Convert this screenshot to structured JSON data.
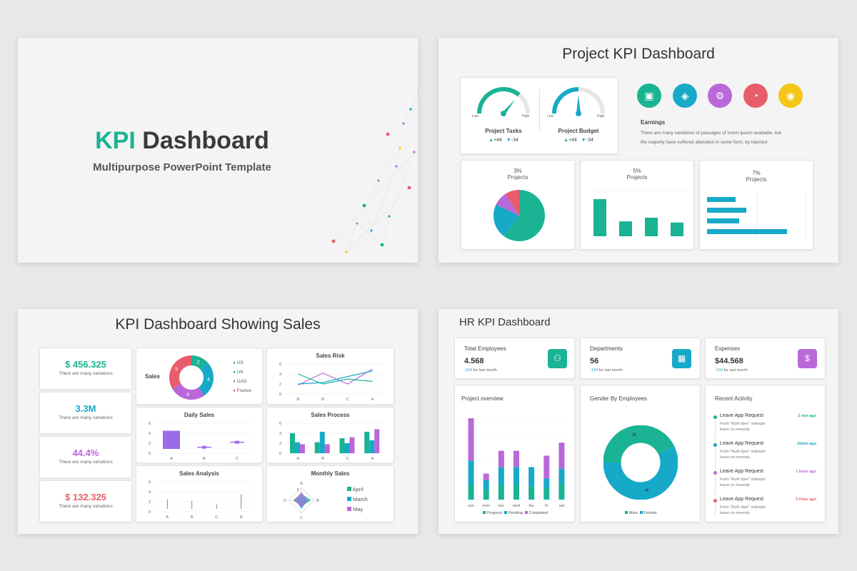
{
  "colors": {
    "teal": "#1ab394",
    "cyan": "#17a9c8",
    "purple": "#b968d8",
    "red": "#e85d6b",
    "yellow": "#f5c518",
    "violet": "#9b6ce8"
  },
  "cover": {
    "title_accent": "KPI",
    "title_rest": "Dashboard",
    "subtitle": "Multipurpose PowerPoint Template"
  },
  "project": {
    "title": "Project KPI Dashboard",
    "gauges": [
      {
        "label": "Project Tasks",
        "low": "Low",
        "high": "High",
        "up": "+44",
        "down": "-34",
        "level": 0.72
      },
      {
        "label": "Project Budget",
        "low": "Low",
        "high": "High",
        "up": "+44",
        "down": "-34",
        "level": 0.5
      }
    ],
    "icons": [
      {
        "name": "chart-icon",
        "color": "#1ab394"
      },
      {
        "name": "tag-icon",
        "color": "#17a9c8"
      },
      {
        "name": "gear-icon",
        "color": "#b968d8"
      },
      {
        "name": "pie-icon",
        "color": "#e85d6b"
      },
      {
        "name": "location-icon",
        "color": "#f5c518"
      }
    ],
    "earnings_title": "Earnings",
    "earnings_text_1": "There are many variations of passages of lorem ipsum available, but",
    "earnings_text_2": "the majority have suffered alteration in some form, by injected",
    "mini": [
      {
        "pct": "3%",
        "label": "Projects"
      },
      {
        "pct": "5%",
        "label": "Projects"
      },
      {
        "pct": "7%",
        "label": "Projects"
      }
    ],
    "pie_data": [
      {
        "value": 60,
        "color": "#1ab394"
      },
      {
        "value": 22,
        "color": "#17a9c8"
      },
      {
        "value": 9,
        "color": "#b968d8"
      },
      {
        "value": 9,
        "color": "#e85d6b"
      }
    ],
    "bar_data": [
      100,
      40,
      50,
      37
    ],
    "hbar_data": [
      40,
      55,
      45,
      112
    ]
  },
  "sales": {
    "title": "KPI Dashboard Showing Sales",
    "stats": [
      {
        "value": "$ 456.325",
        "text": "There are many variations",
        "color": "#1ab394"
      },
      {
        "value": "3.3M",
        "text": "There are many variations",
        "color": "#17a9c8"
      },
      {
        "value": "44.4%",
        "text": "There are many variations",
        "color": "#b968d8"
      },
      {
        "value": "$ 132.325",
        "text": "There are many variations",
        "color": "#e85d6b"
      }
    ],
    "donut_label": "Sales",
    "donut": [
      {
        "label": "US",
        "value": 2,
        "color": "#1ab394"
      },
      {
        "label": "UK",
        "value": 4,
        "color": "#17a9c8"
      },
      {
        "label": "UAS",
        "value": 4,
        "color": "#b968d8"
      },
      {
        "label": "France",
        "value": 5,
        "color": "#e85d6b"
      }
    ],
    "risk_title": "Sales Risk",
    "daily_title": "Daily Sales",
    "process_title": "Sales Process",
    "analysis_title": "Sales Analysis",
    "monthly_title": "Monthly Sales",
    "cats4": [
      "B",
      "B",
      "C",
      "A"
    ],
    "cats3": [
      "A",
      "B",
      "C"
    ],
    "cats_process": [
      "A",
      "B",
      "C",
      "A"
    ],
    "cats_analysis": [
      "A",
      "B",
      "C",
      "A"
    ],
    "yticks": [
      "6",
      "4",
      "2",
      "0"
    ],
    "risk_series": [
      [
        1.8,
        4.2,
        2,
        5
      ],
      [
        2,
        2.3,
        3.5,
        4.6
      ],
      [
        4,
        2,
        3,
        2.5
      ]
    ],
    "daily_values": [
      4.5,
      1.2,
      2.2
    ],
    "process_series": [
      [
        4,
        2.2,
        3,
        4.3
      ],
      [
        2.2,
        4.3,
        2,
        2.6
      ],
      [
        1.8,
        1.8,
        3.2,
        4.8
      ]
    ],
    "analysis_values": [
      2.5,
      2.2,
      1.5,
      3.5
    ],
    "radar_labels": [
      "A",
      "B",
      "C",
      "D"
    ],
    "radar_tick": "5",
    "monthly_legend": [
      {
        "label": "April",
        "color": "#1ab394"
      },
      {
        "label": "March",
        "color": "#17a9c8"
      },
      {
        "label": "May",
        "color": "#b968d8"
      }
    ]
  },
  "hr": {
    "title": "HR KPI Dashboard",
    "kpis": [
      {
        "title": "Total Employees",
        "value": "4.568",
        "delta": "-134",
        "note": "for last month",
        "icon": "org-chart-icon",
        "color": "#1ab394"
      },
      {
        "title": "Departments",
        "value": "56",
        "delta": "-134",
        "note": "for last month",
        "icon": "building-icon",
        "color": "#17a9c8"
      },
      {
        "title": "Expenses",
        "value": "$44.568",
        "delta": "-134",
        "note": "for last month",
        "icon": "money-bag-icon",
        "color": "#b968d8"
      }
    ],
    "overview_title": "Project overview",
    "days": [
      "sun",
      "mon",
      "tue",
      "wed",
      "thu",
      "fri",
      "sat"
    ],
    "overview_stacks": [
      [
        0.9,
        1.5,
        2.6
      ],
      [
        0.6,
        0.6,
        0.4
      ],
      [
        0.9,
        1.1,
        1.0
      ],
      [
        0.9,
        1.1,
        1.0
      ],
      [
        0.8,
        1.2,
        0
      ],
      [
        0.7,
        0.6,
        1.4
      ],
      [
        1.0,
        0.9,
        1.6
      ]
    ],
    "overview_legend": [
      {
        "label": "Progress",
        "color": "#1ab394"
      },
      {
        "label": "Pending",
        "color": "#17a9c8"
      },
      {
        "label": "Completed",
        "color": "#b968d8"
      }
    ],
    "gender_title": "Gender By Employees",
    "gender": [
      {
        "label": "Male",
        "value": 3,
        "display": "3k",
        "color": "#1ab394"
      },
      {
        "label": "Female",
        "value": 4,
        "display": "4k",
        "color": "#17a9c8"
      }
    ],
    "activity_title": "Recent Activity",
    "activities": [
      {
        "title": "Leave App Request",
        "desc1": "From \"Ruth dyer\" sidespin",
        "desc2": "leave on monody",
        "time": "2 min ago",
        "color": "#1ab394"
      },
      {
        "title": "Leave App Request",
        "desc1": "From \"Ruth dyer\" sidespin",
        "desc2": "leave on monody",
        "time": "10min ago",
        "color": "#17a9c8"
      },
      {
        "title": "Leave App Request",
        "desc1": "From \"Ruth dyer\" sidespin",
        "desc2": "leave on monody",
        "time": "1 Hour ago",
        "color": "#b968d8"
      },
      {
        "title": "Leave App Request",
        "desc1": "From \"Ruth dyer\" sidespin",
        "desc2": "leave on monody",
        "time": "5 Hour ago",
        "color": "#e85d6b"
      }
    ]
  }
}
